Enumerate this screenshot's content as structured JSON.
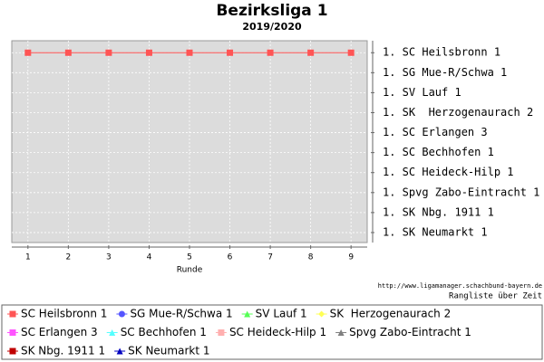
{
  "chart_data": {
    "type": "line",
    "title": "Bezirksliga 1",
    "subtitle": "2019/2020",
    "x_label": "Runde",
    "annotations": [
      "http://www.ligamanager.schachbund-bayern.de",
      "Rangliste über Zeit"
    ],
    "x": [
      1,
      2,
      3,
      4,
      5,
      6,
      7,
      8,
      9
    ],
    "xlim": [
      0.6,
      9.4
    ],
    "xticks": [
      1,
      2,
      3,
      4,
      5,
      6,
      7,
      8,
      9
    ],
    "ylim": [
      10.5,
      0.4
    ],
    "yticks": [
      {
        "value": 1,
        "label": "1. SC Heilsbronn 1"
      },
      {
        "value": 2,
        "label": "1. SG Mue-R/Schwa 1"
      },
      {
        "value": 3,
        "label": "1. SV Lauf 1"
      },
      {
        "value": 4,
        "label": "1. SK  Herzogenaurach 2"
      },
      {
        "value": 5,
        "label": "1. SC Erlangen 3"
      },
      {
        "value": 6,
        "label": "1. SC Bechhofen 1"
      },
      {
        "value": 7,
        "label": "1. SC Heideck-Hilp 1"
      },
      {
        "value": 8,
        "label": "1. Spvg Zabo-Eintracht 1"
      },
      {
        "value": 9,
        "label": "1. SK Nbg. 1911 1"
      },
      {
        "value": 10,
        "label": "1. SK Neumarkt 1"
      }
    ],
    "grid": true,
    "legend": "bottom",
    "series": [
      {
        "name": "SC Heilsbronn 1",
        "color": "#ff5555",
        "values": [
          1,
          1,
          1,
          1,
          1,
          1,
          1,
          1,
          1
        ]
      },
      {
        "name": "SG Mue-R/Schwa 1",
        "color": "#5555ff",
        "values": [
          null,
          null,
          null,
          null,
          null,
          null,
          null,
          null,
          null
        ]
      },
      {
        "name": "SV Lauf 1",
        "color": "#55ff55",
        "values": [
          null,
          null,
          null,
          null,
          null,
          null,
          null,
          null,
          null
        ]
      },
      {
        "name": "SK  Herzogenaurach 2",
        "color": "#ffff55",
        "values": [
          null,
          null,
          null,
          null,
          null,
          null,
          null,
          null,
          null
        ]
      },
      {
        "name": "SC Erlangen 3",
        "color": "#ff55ff",
        "values": [
          null,
          null,
          null,
          null,
          null,
          null,
          null,
          null,
          null
        ]
      },
      {
        "name": "SC Bechhofen 1",
        "color": "#55ffff",
        "values": [
          null,
          null,
          null,
          null,
          null,
          null,
          null,
          null,
          null
        ]
      },
      {
        "name": "SC Heideck-Hilp 1",
        "color": "#ffafaf",
        "values": [
          null,
          null,
          null,
          null,
          null,
          null,
          null,
          null,
          null
        ]
      },
      {
        "name": "Spvg Zabo-Eintracht 1",
        "color": "#808080",
        "values": [
          null,
          null,
          null,
          null,
          null,
          null,
          null,
          null,
          null
        ]
      },
      {
        "name": "SK Nbg. 1911 1",
        "color": "#c00000",
        "values": [
          null,
          null,
          null,
          null,
          null,
          null,
          null,
          null,
          null
        ]
      },
      {
        "name": "SK Neumarkt 1",
        "color": "#0000c0",
        "values": [
          null,
          null,
          null,
          null,
          null,
          null,
          null,
          null,
          null
        ]
      }
    ]
  }
}
